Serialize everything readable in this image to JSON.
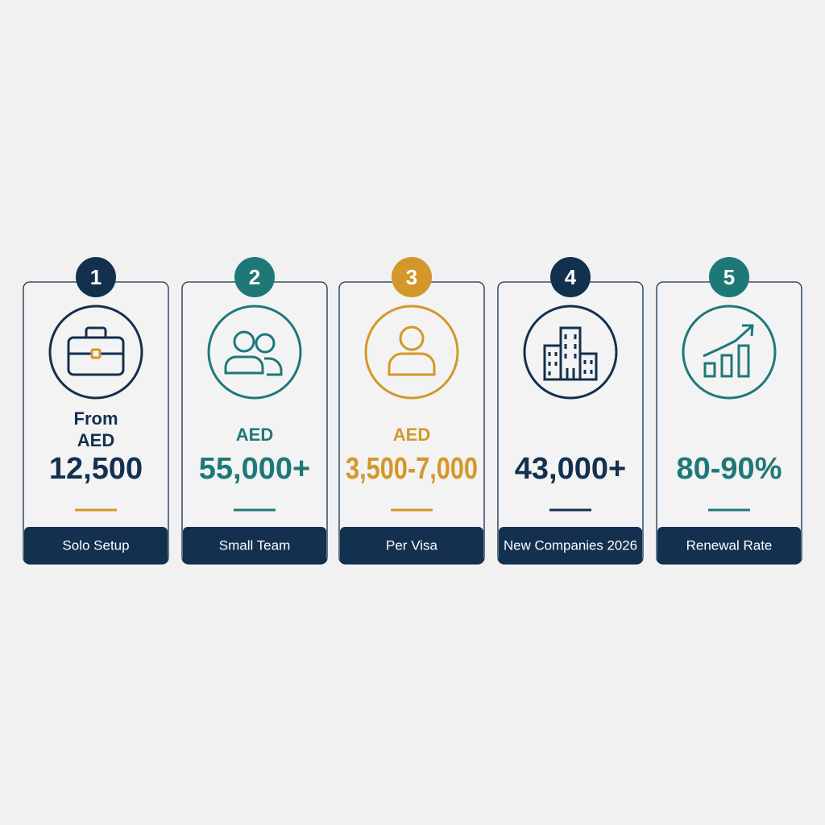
{
  "cards": [
    {
      "number": "1",
      "prefix": [
        "From",
        "AED"
      ],
      "value": "12,500",
      "label": "Solo Setup",
      "icon": "briefcase",
      "color": "#13304f",
      "underline_color": "#d4972a"
    },
    {
      "number": "2",
      "prefix": [
        "AED"
      ],
      "value": "55,000+",
      "label": "Small Team",
      "icon": "team",
      "color": "#1f7878",
      "underline_color": "#1f7878"
    },
    {
      "number": "3",
      "prefix": [
        "AED"
      ],
      "value": "3,500-7,000",
      "label": "Per Visa",
      "icon": "person",
      "color": "#d4972a",
      "underline_color": "#d4972a"
    },
    {
      "number": "4",
      "value": "43,000+",
      "label": "New Companies 2026",
      "icon": "buildings",
      "color": "#13304f",
      "underline_color": "#13304f"
    },
    {
      "number": "5",
      "value": "80-90%",
      "label": "Renewal Rate",
      "icon": "growth",
      "color": "#1f7878",
      "underline_color": "#1f7878"
    }
  ]
}
